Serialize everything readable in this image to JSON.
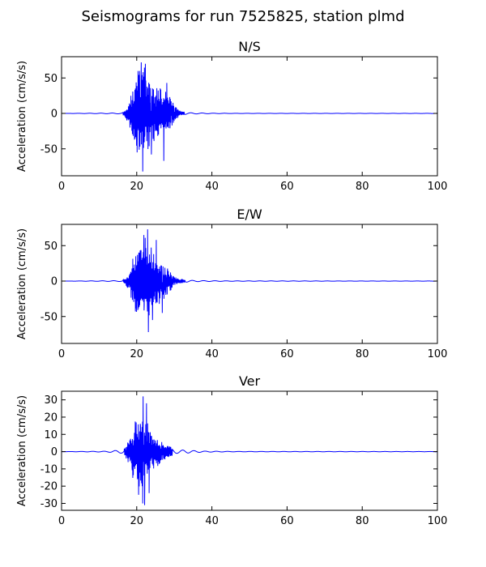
{
  "figure_title": "Seismograms for run 7525825, station plmd",
  "line_color": "#0000ff",
  "chart_data": [
    {
      "type": "line",
      "title": "N/S",
      "xlabel": "",
      "ylabel": "Acceleration (cm/s/s)",
      "xlim": [
        0,
        100
      ],
      "ylim": [
        -88,
        80
      ],
      "xticks": [
        0,
        20,
        40,
        60,
        80,
        100
      ],
      "yticks": [
        -50,
        0,
        50
      ],
      "grid": false,
      "envelope": [
        [
          0,
          0
        ],
        [
          16,
          1
        ],
        [
          17,
          6
        ],
        [
          18,
          20
        ],
        [
          19,
          45
        ],
        [
          20,
          62
        ],
        [
          21,
          72
        ],
        [
          22,
          68
        ],
        [
          23,
          55
        ],
        [
          24,
          45
        ],
        [
          25,
          40
        ],
        [
          26,
          38
        ],
        [
          27,
          36
        ],
        [
          28,
          32
        ],
        [
          29,
          22
        ],
        [
          30,
          12
        ],
        [
          31,
          6
        ],
        [
          32,
          3
        ],
        [
          34,
          1.5
        ],
        [
          37,
          1
        ],
        [
          40,
          0.6
        ],
        [
          45,
          0.3
        ],
        [
          100,
          0.2
        ]
      ],
      "peaks": [
        [
          21.2,
          72
        ],
        [
          21.6,
          -82
        ],
        [
          22.3,
          70
        ],
        [
          20.1,
          -55
        ],
        [
          27.2,
          -67
        ],
        [
          28.0,
          43
        ],
        [
          23.9,
          -58
        ]
      ],
      "seed": 11
    },
    {
      "type": "line",
      "title": "E/W",
      "xlabel": "",
      "ylabel": "Acceleration (cm/s/s)",
      "xlim": [
        0,
        100
      ],
      "ylim": [
        -88,
        80
      ],
      "xticks": [
        0,
        20,
        40,
        60,
        80,
        100
      ],
      "yticks": [
        -50,
        0,
        50
      ],
      "grid": false,
      "envelope": [
        [
          0,
          0
        ],
        [
          16,
          1
        ],
        [
          17,
          5
        ],
        [
          18,
          15
        ],
        [
          19,
          35
        ],
        [
          20,
          50
        ],
        [
          21,
          60
        ],
        [
          22,
          65
        ],
        [
          23,
          60
        ],
        [
          24,
          50
        ],
        [
          25,
          42
        ],
        [
          26,
          35
        ],
        [
          27,
          28
        ],
        [
          28,
          22
        ],
        [
          29,
          14
        ],
        [
          30,
          8
        ],
        [
          31,
          5
        ],
        [
          32,
          3
        ],
        [
          33,
          2.5
        ],
        [
          35,
          1.5
        ],
        [
          38,
          1
        ],
        [
          45,
          0.5
        ],
        [
          100,
          0.2
        ]
      ],
      "peaks": [
        [
          22.9,
          73
        ],
        [
          23.1,
          -72
        ],
        [
          21.9,
          65
        ],
        [
          24.2,
          -55
        ],
        [
          25.2,
          58
        ],
        [
          26.8,
          -45
        ]
      ],
      "seed": 29
    },
    {
      "type": "line",
      "title": "Ver",
      "xlabel": "",
      "ylabel": "Acceleration (cm/s/s)",
      "xlim": [
        0,
        100
      ],
      "ylim": [
        -34,
        35
      ],
      "xticks": [
        0,
        20,
        40,
        60,
        80,
        100
      ],
      "yticks": [
        -30,
        -20,
        -10,
        0,
        10,
        20,
        30
      ],
      "grid": false,
      "envelope": [
        [
          0,
          0
        ],
        [
          12,
          0.4
        ],
        [
          14,
          1
        ],
        [
          16,
          1.5
        ],
        [
          17,
          3
        ],
        [
          18,
          8
        ],
        [
          19,
          16
        ],
        [
          20,
          22
        ],
        [
          21,
          24
        ],
        [
          22,
          22
        ],
        [
          23,
          18
        ],
        [
          24,
          14
        ],
        [
          25,
          10
        ],
        [
          26,
          8
        ],
        [
          27,
          6
        ],
        [
          28,
          5
        ],
        [
          29,
          3
        ],
        [
          30,
          2
        ],
        [
          31,
          1.5
        ],
        [
          33,
          1.5
        ],
        [
          35,
          1
        ],
        [
          38,
          0.5
        ],
        [
          45,
          0.2
        ],
        [
          100,
          0.1
        ]
      ],
      "peaks": [
        [
          21.7,
          32
        ],
        [
          21.6,
          -30
        ],
        [
          22.1,
          -31
        ],
        [
          20.5,
          -25
        ],
        [
          22.6,
          28
        ],
        [
          23.3,
          -24
        ]
      ],
      "seed": 47
    }
  ]
}
